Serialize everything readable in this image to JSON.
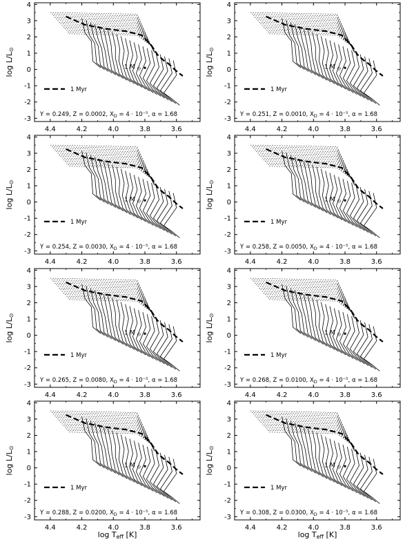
{
  "chart_data": {
    "type": "line",
    "figure": "Grid of pre-main-sequence evolutionary tracks in the HR diagram for 8 compositions",
    "xlabel": {
      "prefix": "log T",
      "sub": "eff",
      "suffix": " [K]"
    },
    "ylabel": {
      "prefix": "log L/L",
      "sub": "⊙"
    },
    "xlim": [
      4.5,
      3.45
    ],
    "ylim": [
      -3.2,
      4.1
    ],
    "xticks": [
      "4.4",
      "4.2",
      "4.0",
      "3.8",
      "3.6"
    ],
    "yticks": [
      "-3",
      "-2",
      "-1",
      "0",
      "1",
      "2",
      "3",
      "4"
    ],
    "legend": {
      "label": "1 Myr",
      "style": "thick dashed",
      "position": "lower-left"
    },
    "mass_label": {
      "text": "1 M",
      "sub": "⊙"
    },
    "series_description": "solid = evolutionary tracks; dotted = tracks in upper region; thick dashed = 1 Myr isochrone",
    "panels": [
      {
        "id": "a",
        "Y": "0.249",
        "Z": "0.0002",
        "XD": "4 · 10⁻⁵",
        "alpha": "1.68",
        "caption": "Y = 0.249, Z = 0.0002, X_D = 4 · 10⁻⁵, α = 1.68"
      },
      {
        "id": "b",
        "Y": "0.251",
        "Z": "0.0010",
        "XD": "4 · 10⁻⁵",
        "alpha": "1.68",
        "caption": "Y = 0.251, Z = 0.0010, X_D = 4 · 10⁻⁵, α = 1.68"
      },
      {
        "id": "c",
        "Y": "0.254",
        "Z": "0.0030",
        "XD": "4 · 10⁻⁵",
        "alpha": "1.68",
        "caption": "Y = 0.254, Z = 0.0030, X_D = 4 · 10⁻⁵, α = 1.68"
      },
      {
        "id": "d",
        "Y": "0.258",
        "Z": "0.0050",
        "XD": "4 · 10⁻⁵",
        "alpha": "1.68",
        "caption": "Y = 0.258, Z = 0.0050, X_D = 4 · 10⁻⁵, α = 1.68"
      },
      {
        "id": "e",
        "Y": "0.265",
        "Z": "0.0080",
        "XD": "4 · 10⁻⁵",
        "alpha": "1.68",
        "caption": "Y = 0.265, Z = 0.0080, X_D = 4 · 10⁻⁵, α = 1.68"
      },
      {
        "id": "f",
        "Y": "0.268",
        "Z": "0.0100",
        "XD": "4 · 10⁻⁵",
        "alpha": "1.68",
        "caption": "Y = 0.268, Z = 0.0100, X_D = 4 · 10⁻⁵, α = 1.68"
      },
      {
        "id": "g",
        "Y": "0.288",
        "Z": "0.0200",
        "XD": "4 · 10⁻⁵",
        "alpha": "1.68",
        "caption": "Y = 0.288, Z = 0.0200, X_D = 4 · 10⁻⁵, α = 1.68"
      },
      {
        "id": "h",
        "Y": "0.308",
        "Z": "0.0300",
        "XD": "4 · 10⁻⁵",
        "alpha": "1.68",
        "caption": "Y = 0.308, Z = 0.0300, X_D = 4 · 10⁻⁵, α = 1.68"
      }
    ]
  }
}
